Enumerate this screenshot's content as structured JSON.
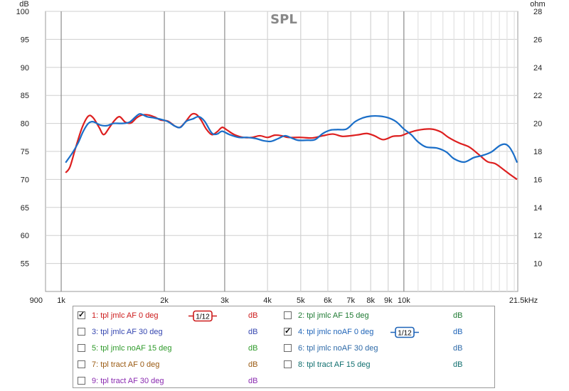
{
  "chart_data": {
    "type": "line",
    "title": "SPL",
    "xscale": "log",
    "xlim": [
      900,
      21500
    ],
    "ylim": [
      50,
      100
    ],
    "y2lim": [
      8,
      28
    ],
    "ylabel": "dB",
    "y2label": "ohm",
    "x_ticks": [
      {
        "v": 900,
        "label": "900"
      },
      {
        "v": 1000,
        "label": "1k"
      },
      {
        "v": 2000,
        "label": "2k"
      },
      {
        "v": 3000,
        "label": "3k"
      },
      {
        "v": 4000,
        "label": "4k"
      },
      {
        "v": 5000,
        "label": "5k"
      },
      {
        "v": 6000,
        "label": "6k"
      },
      {
        "v": 7000,
        "label": "7k"
      },
      {
        "v": 8000,
        "label": "8k"
      },
      {
        "v": 9000,
        "label": "9k"
      },
      {
        "v": 10000,
        "label": "10k"
      },
      {
        "v": 21500,
        "label": "21.5kHz"
      }
    ],
    "y_ticks": [
      55,
      60,
      65,
      70,
      75,
      80,
      85,
      90,
      95,
      100
    ],
    "y2_ticks": [
      10,
      12,
      14,
      16,
      18,
      20,
      22,
      24,
      26,
      28
    ],
    "grid": true,
    "series": [
      {
        "name": "1: tpl jmlc AF 0 deg",
        "color": "#dd1f1f",
        "points": [
          [
            1030,
            71.2
          ],
          [
            1060,
            72.2
          ],
          [
            1100,
            75.5
          ],
          [
            1150,
            79.2
          ],
          [
            1200,
            81.3
          ],
          [
            1240,
            81.0
          ],
          [
            1290,
            79.3
          ],
          [
            1330,
            78.0
          ],
          [
            1380,
            79.2
          ],
          [
            1430,
            80.5
          ],
          [
            1480,
            81.2
          ],
          [
            1540,
            80.2
          ],
          [
            1600,
            80.1
          ],
          [
            1660,
            81.0
          ],
          [
            1720,
            81.5
          ],
          [
            1800,
            81.5
          ],
          [
            1880,
            81.1
          ],
          [
            1950,
            80.6
          ],
          [
            2050,
            80.4
          ],
          [
            2150,
            79.5
          ],
          [
            2220,
            79.3
          ],
          [
            2300,
            80.2
          ],
          [
            2400,
            81.6
          ],
          [
            2480,
            81.6
          ],
          [
            2560,
            80.6
          ],
          [
            2650,
            79.0
          ],
          [
            2750,
            78.0
          ],
          [
            2850,
            78.5
          ],
          [
            2950,
            79.3
          ],
          [
            3050,
            78.8
          ],
          [
            3200,
            78.0
          ],
          [
            3400,
            77.5
          ],
          [
            3600,
            77.5
          ],
          [
            3800,
            77.8
          ],
          [
            4000,
            77.5
          ],
          [
            4200,
            77.9
          ],
          [
            4400,
            77.8
          ],
          [
            4600,
            77.5
          ],
          [
            5000,
            77.5
          ],
          [
            5400,
            77.4
          ],
          [
            5800,
            77.8
          ],
          [
            6200,
            78.1
          ],
          [
            6600,
            77.7
          ],
          [
            7000,
            77.8
          ],
          [
            7400,
            78.0
          ],
          [
            7800,
            78.2
          ],
          [
            8200,
            77.8
          ],
          [
            8700,
            77.1
          ],
          [
            9300,
            77.7
          ],
          [
            9800,
            77.8
          ],
          [
            10300,
            78.3
          ],
          [
            11000,
            78.8
          ],
          [
            12000,
            79.0
          ],
          [
            12800,
            78.5
          ],
          [
            13500,
            77.5
          ],
          [
            14500,
            76.5
          ],
          [
            15500,
            75.8
          ],
          [
            16500,
            74.5
          ],
          [
            17500,
            73.2
          ],
          [
            18500,
            72.8
          ],
          [
            19500,
            71.8
          ],
          [
            20500,
            70.8
          ],
          [
            21400,
            70.0
          ]
        ]
      },
      {
        "name": "4: tpl jmlc noAF 0 deg",
        "color": "#1a6ec8",
        "points": [
          [
            1030,
            73.0
          ],
          [
            1080,
            74.8
          ],
          [
            1120,
            76.5
          ],
          [
            1160,
            78.6
          ],
          [
            1200,
            80.0
          ],
          [
            1240,
            80.3
          ],
          [
            1300,
            79.7
          ],
          [
            1360,
            79.6
          ],
          [
            1420,
            80.0
          ],
          [
            1500,
            80.0
          ],
          [
            1580,
            80.2
          ],
          [
            1650,
            81.2
          ],
          [
            1700,
            81.7
          ],
          [
            1780,
            81.2
          ],
          [
            1860,
            81.0
          ],
          [
            1960,
            80.7
          ],
          [
            2050,
            80.3
          ],
          [
            2150,
            79.5
          ],
          [
            2230,
            79.3
          ],
          [
            2320,
            80.4
          ],
          [
            2420,
            80.8
          ],
          [
            2520,
            81.2
          ],
          [
            2620,
            80.4
          ],
          [
            2750,
            78.3
          ],
          [
            2850,
            78.1
          ],
          [
            2950,
            78.6
          ],
          [
            3100,
            78.0
          ],
          [
            3300,
            77.5
          ],
          [
            3500,
            77.5
          ],
          [
            3700,
            77.3
          ],
          [
            3900,
            76.9
          ],
          [
            4100,
            76.8
          ],
          [
            4300,
            77.3
          ],
          [
            4500,
            77.8
          ],
          [
            4700,
            77.4
          ],
          [
            4900,
            77.0
          ],
          [
            5200,
            77.0
          ],
          [
            5500,
            77.1
          ],
          [
            5800,
            78.2
          ],
          [
            6100,
            78.8
          ],
          [
            6400,
            78.9
          ],
          [
            6800,
            79.0
          ],
          [
            7200,
            80.3
          ],
          [
            7600,
            81.0
          ],
          [
            8000,
            81.3
          ],
          [
            8500,
            81.3
          ],
          [
            9000,
            81.0
          ],
          [
            9500,
            80.3
          ],
          [
            10000,
            79.0
          ],
          [
            10500,
            78.0
          ],
          [
            11000,
            76.7
          ],
          [
            11600,
            75.8
          ],
          [
            12500,
            75.6
          ],
          [
            13300,
            74.9
          ],
          [
            14000,
            73.7
          ],
          [
            15000,
            73.1
          ],
          [
            16000,
            73.9
          ],
          [
            17000,
            74.3
          ],
          [
            18000,
            74.9
          ],
          [
            19000,
            76.0
          ],
          [
            19700,
            76.3
          ],
          [
            20300,
            75.8
          ],
          [
            20900,
            74.5
          ],
          [
            21400,
            73.0
          ]
        ]
      }
    ]
  },
  "legend": {
    "items": [
      {
        "label": "1: tpl jmlc AF 0 deg",
        "unit": "dB",
        "checked": true,
        "color": "#cc1b1b",
        "smoothing": "1/12"
      },
      {
        "label": "2: tpl jmlc AF 15 deg",
        "unit": "dB",
        "checked": false,
        "color": "#1f7a33"
      },
      {
        "label": "3: tpl jmlc AF 30 deg",
        "unit": "dB",
        "checked": false,
        "color": "#3546b0"
      },
      {
        "label": "4: tpl jmlc noAF 0 deg",
        "unit": "dB",
        "checked": true,
        "color": "#1f64b8",
        "smoothing": "1/12"
      },
      {
        "label": "5: tpl jmlc noAF 15 deg",
        "unit": "dB",
        "checked": false,
        "color": "#2e9a2a"
      },
      {
        "label": "6: tpl jmlc noAF 30 deg",
        "unit": "dB",
        "checked": false,
        "color": "#2e6aa8"
      },
      {
        "label": "7: tpl tract AF 0 deg",
        "unit": "dB",
        "checked": false,
        "color": "#9a5a12"
      },
      {
        "label": "8: tpl tract AF 15 deg",
        "unit": "dB",
        "checked": false,
        "color": "#0f6e6e"
      },
      {
        "label": "9: tpl tract AF 30 deg",
        "unit": "dB",
        "checked": false,
        "color": "#8a2ab0"
      }
    ]
  }
}
